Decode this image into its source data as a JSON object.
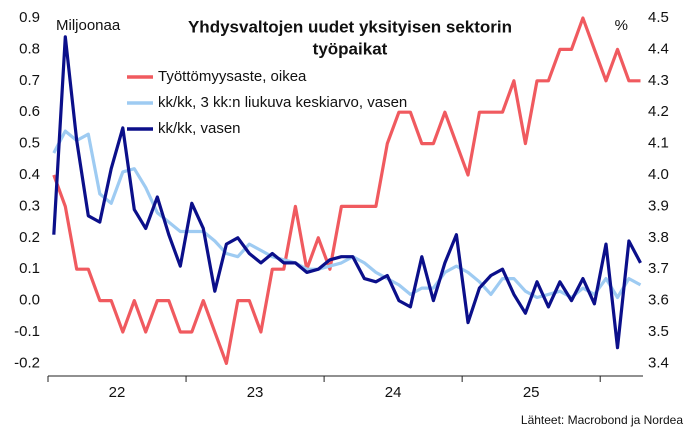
{
  "chart_data": {
    "type": "line",
    "title": [
      "Yhdysvaltojen uudet yksityisen sektorin",
      "työpaikat"
    ],
    "y_label": "Miljoonaa",
    "y2_label": "%",
    "source": "Lähteet: Macrobond ja Nordea",
    "x": [
      22.042,
      22.125,
      22.208,
      22.292,
      22.375,
      22.458,
      22.542,
      22.625,
      22.708,
      22.792,
      22.875,
      22.958,
      23.042,
      23.125,
      23.208,
      23.292,
      23.375,
      23.458,
      23.542,
      23.625,
      23.708,
      23.792,
      23.875,
      23.958,
      24.042,
      24.125,
      24.208,
      24.292,
      24.375,
      24.458,
      24.542,
      24.625,
      24.708,
      24.792,
      24.875,
      24.958,
      25.042,
      25.125,
      25.208,
      25.292,
      25.375,
      25.458,
      25.542,
      25.625,
      25.708,
      25.792,
      25.875,
      25.958,
      26.042,
      26.125,
      26.208,
      26.292
    ],
    "xlim": [
      22,
      26.31
    ],
    "xticks": [
      22,
      23,
      24,
      25,
      26
    ],
    "xlabels": [
      {
        "value": 22.5,
        "label": "22"
      },
      {
        "value": 23.5,
        "label": "23"
      },
      {
        "value": 24.5,
        "label": "24"
      },
      {
        "value": 25.5,
        "label": "25"
      }
    ],
    "ylim": [
      -0.24,
      0.9
    ],
    "yticks": [
      -0.2,
      -0.1,
      {
        "value": 0,
        "label": "0.0"
      },
      0.1,
      0.2,
      0.3,
      0.4,
      0.5,
      0.6,
      0.7,
      0.8,
      0.9
    ],
    "y2lim": [
      3.36,
      4.5
    ],
    "y2ticks": [
      3.4,
      3.5,
      3.6,
      3.7,
      3.8,
      3.9,
      {
        "value": 4,
        "label": "4.0"
      },
      4.1,
      4.2,
      4.3,
      4.4,
      4.5
    ],
    "series": [
      {
        "name": "Työttömyysaste, oikea",
        "color": "#f05a5f",
        "axis": "y2",
        "values": [
          4.0,
          3.9,
          3.7,
          3.7,
          3.6,
          3.6,
          3.5,
          3.6,
          3.5,
          3.6,
          3.6,
          3.5,
          3.5,
          3.6,
          3.5,
          3.4,
          3.6,
          3.6,
          3.5,
          3.7,
          3.7,
          3.9,
          3.7,
          3.8,
          3.7,
          3.9,
          3.9,
          3.9,
          3.9,
          4.1,
          4.2,
          4.2,
          4.1,
          4.1,
          4.2,
          4.1,
          4.0,
          4.2,
          4.2,
          4.2,
          4.3,
          4.1,
          4.3,
          4.3,
          4.4,
          4.4,
          4.5,
          4.4,
          4.3,
          4.4,
          4.3,
          4.3
        ]
      },
      {
        "name": "kk/kk, 3 kk:n liukuva keskiarvo, vasen",
        "color": "#9ecbf2",
        "values": [
          0.47,
          0.54,
          0.51,
          0.53,
          0.34,
          0.31,
          0.41,
          0.42,
          0.36,
          0.28,
          0.25,
          0.22,
          0.22,
          0.22,
          0.19,
          0.15,
          0.14,
          0.18,
          0.16,
          0.14,
          0.13,
          0.12,
          0.1,
          0.1,
          0.11,
          0.12,
          0.14,
          0.12,
          0.09,
          0.07,
          0.05,
          0.02,
          0.04,
          0.04,
          0.09,
          0.11,
          0.09,
          0.06,
          0.02,
          0.07,
          0.07,
          0.03,
          0.01,
          0.02,
          0.03,
          0.01,
          0.04,
          0.02,
          0.07,
          0.01,
          0.07,
          0.05
        ]
      },
      {
        "name": "kk/kk, vasen",
        "color": "#0b0f8a",
        "values": [
          0.21,
          0.84,
          0.51,
          0.27,
          0.25,
          0.42,
          0.55,
          0.29,
          0.23,
          0.33,
          0.21,
          0.11,
          0.31,
          0.23,
          0.03,
          0.18,
          0.2,
          0.15,
          0.12,
          0.15,
          0.12,
          0.12,
          0.09,
          0.1,
          0.13,
          0.14,
          0.14,
          0.07,
          0.06,
          0.08,
          0.0,
          -0.02,
          0.14,
          0.0,
          0.12,
          0.21,
          -0.07,
          0.04,
          0.08,
          0.1,
          0.02,
          -0.04,
          0.06,
          -0.02,
          0.06,
          0.0,
          0.07,
          -0.01,
          0.18,
          -0.15,
          0.19,
          0.12
        ]
      }
    ]
  }
}
